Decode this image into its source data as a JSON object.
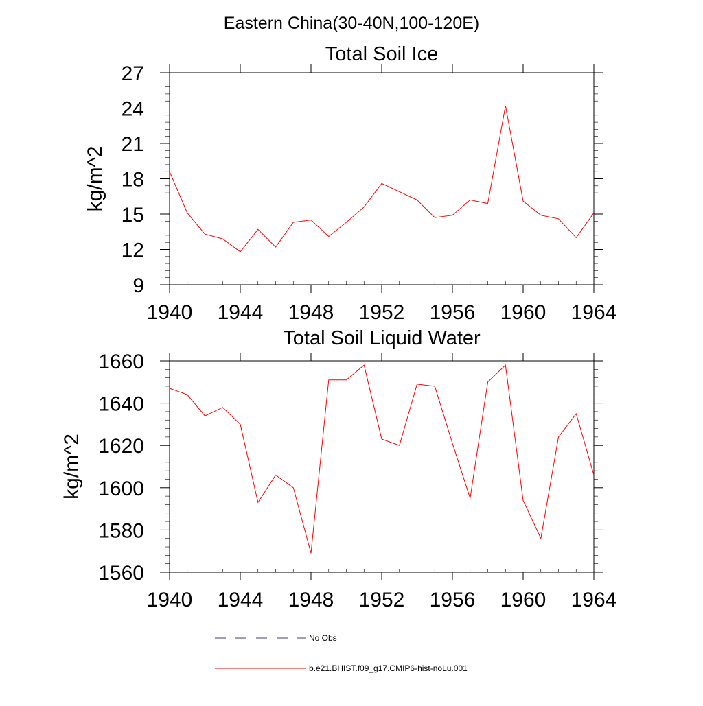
{
  "figure": {
    "title": "Eastern China(30-40N,100-120E)"
  },
  "chart_data": [
    {
      "type": "line",
      "title": "Total Soil Ice",
      "xlabel": "",
      "ylabel": "kg/m^2",
      "xlim": [
        1940,
        1964
      ],
      "ylim": [
        9,
        27
      ],
      "x_ticks": [
        1940,
        1944,
        1948,
        1952,
        1956,
        1960,
        1964
      ],
      "x_tick_labels": [
        "1940",
        "1944",
        "1948",
        "1952",
        "1956",
        "1960",
        "1964"
      ],
      "y_ticks": [
        9,
        12,
        15,
        18,
        21,
        24,
        27
      ],
      "y_tick_labels": [
        "9",
        "12",
        "15",
        "18",
        "21",
        "24",
        "27"
      ],
      "grid": false,
      "series": [
        {
          "name": "b.e21.BHIST.f09_g17.CMIP6-hist-noLu.001",
          "color": "#ff0000",
          "x": [
            1940,
            1941,
            1942,
            1943,
            1944,
            1945,
            1946,
            1947,
            1948,
            1949,
            1950,
            1951,
            1952,
            1953,
            1954,
            1955,
            1956,
            1957,
            1958,
            1959,
            1960,
            1961,
            1962,
            1963,
            1964
          ],
          "y": [
            18.6,
            15.1,
            13.3,
            12.9,
            11.8,
            13.7,
            12.2,
            14.3,
            14.5,
            13.1,
            14.3,
            15.6,
            17.6,
            16.9,
            16.2,
            14.7,
            14.9,
            16.2,
            15.9,
            24.2,
            16.1,
            14.9,
            14.6,
            13.0,
            15.1
          ]
        }
      ]
    },
    {
      "type": "line",
      "title": "Total Soil Liquid Water",
      "xlabel": "",
      "ylabel": "kg/m^2",
      "xlim": [
        1940,
        1964
      ],
      "ylim": [
        1560,
        1660
      ],
      "x_ticks": [
        1940,
        1944,
        1948,
        1952,
        1956,
        1960,
        1964
      ],
      "x_tick_labels": [
        "1940",
        "1944",
        "1948",
        "1952",
        "1956",
        "1960",
        "1964"
      ],
      "y_ticks": [
        1560,
        1580,
        1600,
        1620,
        1640,
        1660
      ],
      "y_tick_labels": [
        "1560",
        "1580",
        "1600",
        "1620",
        "1640",
        "1660"
      ],
      "grid": false,
      "series": [
        {
          "name": "b.e21.BHIST.f09_g17.CMIP6-hist-noLu.001",
          "color": "#ff0000",
          "x": [
            1940,
            1941,
            1942,
            1943,
            1944,
            1945,
            1946,
            1947,
            1948,
            1949,
            1950,
            1951,
            1952,
            1953,
            1954,
            1955,
            1956,
            1957,
            1958,
            1959,
            1960,
            1961,
            1962,
            1963,
            1964
          ],
          "y": [
            1647,
            1644,
            1634,
            1638,
            1630,
            1593,
            1606,
            1600,
            1569,
            1651,
            1651,
            1658,
            1623,
            1620,
            1649,
            1648,
            1621,
            1595,
            1650,
            1658,
            1594,
            1576,
            1624,
            1635,
            1606
          ]
        }
      ]
    }
  ],
  "legend": {
    "placement": "bottom",
    "items": [
      {
        "label": "No Obs",
        "color": "#3c3c78",
        "style": "dashed"
      },
      {
        "label": "b.e21.BHIST.f09_g17.CMIP6-hist-noLu.001",
        "color": "#ff0000",
        "style": "solid"
      }
    ]
  }
}
